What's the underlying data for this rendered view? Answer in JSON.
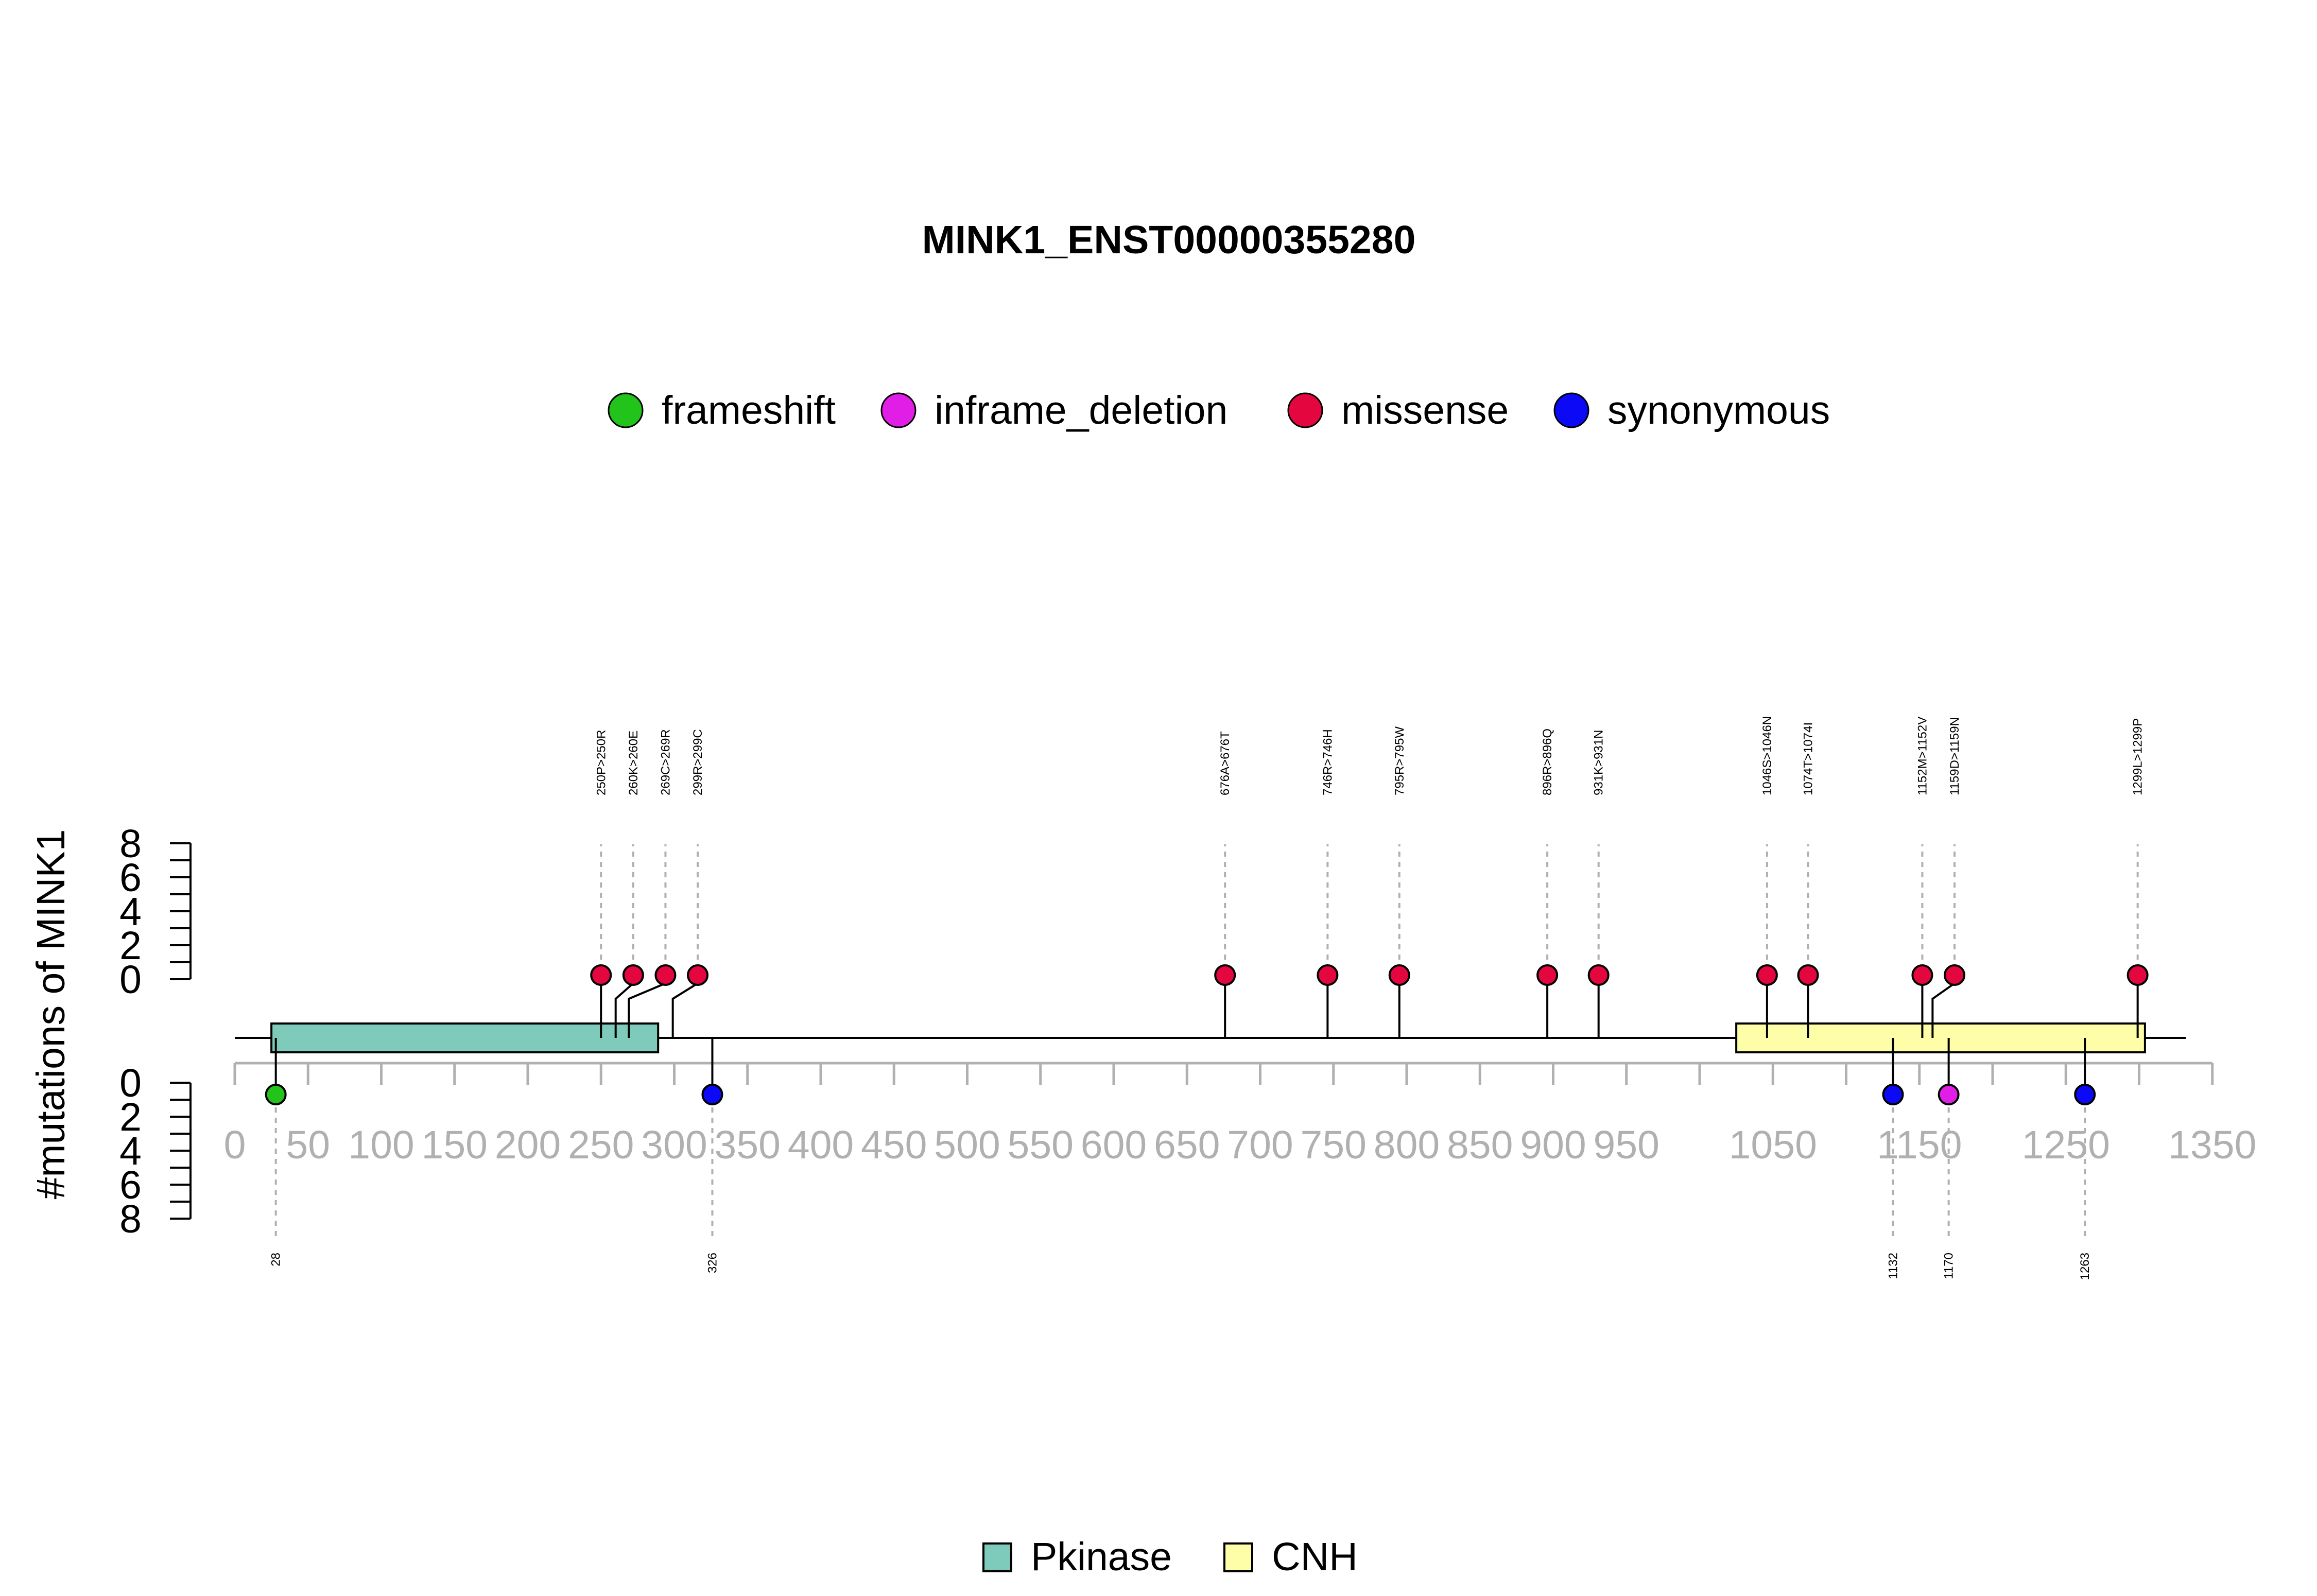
{
  "chart_data": {
    "type": "lollipop",
    "title": "MINK1_ENST00000355280",
    "ylabel": "#mutations of MINK1",
    "protein_length": 1332,
    "xlim": [
      0,
      1350
    ],
    "x_ticks": [
      0,
      50,
      100,
      150,
      200,
      250,
      300,
      350,
      400,
      450,
      500,
      550,
      600,
      650,
      700,
      750,
      800,
      850,
      900,
      950,
      1000,
      1050,
      1100,
      1150,
      1200,
      1250,
      1300,
      1350
    ],
    "x_tick_labels": [
      "0",
      "50",
      "100",
      "150",
      "200",
      "250",
      "300",
      "350",
      "400",
      "450",
      "500",
      "550",
      "600",
      "650",
      "700",
      "750",
      "800",
      "850",
      "900",
      "950",
      "",
      "1050",
      "",
      "1150",
      "",
      "1250",
      "",
      "1350"
    ],
    "y_ticks": [
      "0",
      "2",
      "4",
      "6",
      "8"
    ],
    "ylim": [
      0,
      8
    ],
    "categories": [
      {
        "name": "frameshift",
        "color": "#22c31a"
      },
      {
        "name": "inframe_deletion",
        "color": "#e11ee6"
      },
      {
        "name": "missense",
        "color": "#e4063f"
      },
      {
        "name": "synonymous",
        "color": "#0b09f5"
      }
    ],
    "domains": [
      {
        "name": "Pkinase",
        "start": 25,
        "end": 289,
        "color": "#7fcbbb"
      },
      {
        "name": "CNH",
        "start": 1025,
        "end": 1304,
        "color": "#fefea8"
      }
    ],
    "mutations_top": [
      {
        "pos": 250,
        "label": "250P>250R",
        "count": 1,
        "type": "missense"
      },
      {
        "pos": 260,
        "label": "260K>260E",
        "count": 1,
        "type": "missense"
      },
      {
        "pos": 269,
        "label": "269C>269R",
        "count": 1,
        "type": "missense"
      },
      {
        "pos": 299,
        "label": "299R>299C",
        "count": 1,
        "type": "missense"
      },
      {
        "pos": 676,
        "label": "676A>676T",
        "count": 1,
        "type": "missense"
      },
      {
        "pos": 746,
        "label": "746R>746H",
        "count": 1,
        "type": "missense"
      },
      {
        "pos": 795,
        "label": "795R>795W",
        "count": 1,
        "type": "missense"
      },
      {
        "pos": 896,
        "label": "896R>896Q",
        "count": 1,
        "type": "missense"
      },
      {
        "pos": 931,
        "label": "931K>931N",
        "count": 1,
        "type": "missense"
      },
      {
        "pos": 1046,
        "label": "1046S>1046N",
        "count": 1,
        "type": "missense"
      },
      {
        "pos": 1074,
        "label": "1074T>1074I",
        "count": 1,
        "type": "missense"
      },
      {
        "pos": 1152,
        "label": "1152M>1152V",
        "count": 1,
        "type": "missense"
      },
      {
        "pos": 1159,
        "label": "1159D>1159N",
        "count": 1,
        "type": "missense"
      },
      {
        "pos": 1299,
        "label": "1299L>1299P",
        "count": 1,
        "type": "missense"
      }
    ],
    "mutations_bottom": [
      {
        "pos": 28,
        "label": "28",
        "count": 1,
        "type": "frameshift"
      },
      {
        "pos": 326,
        "label": "326",
        "count": 1,
        "type": "synonymous"
      },
      {
        "pos": 1132,
        "label": "1132",
        "count": 1,
        "type": "synonymous"
      },
      {
        "pos": 1170,
        "label": "1170",
        "count": 1,
        "type": "inframe_deletion"
      },
      {
        "pos": 1263,
        "label": "1263",
        "count": 1,
        "type": "synonymous"
      }
    ]
  }
}
